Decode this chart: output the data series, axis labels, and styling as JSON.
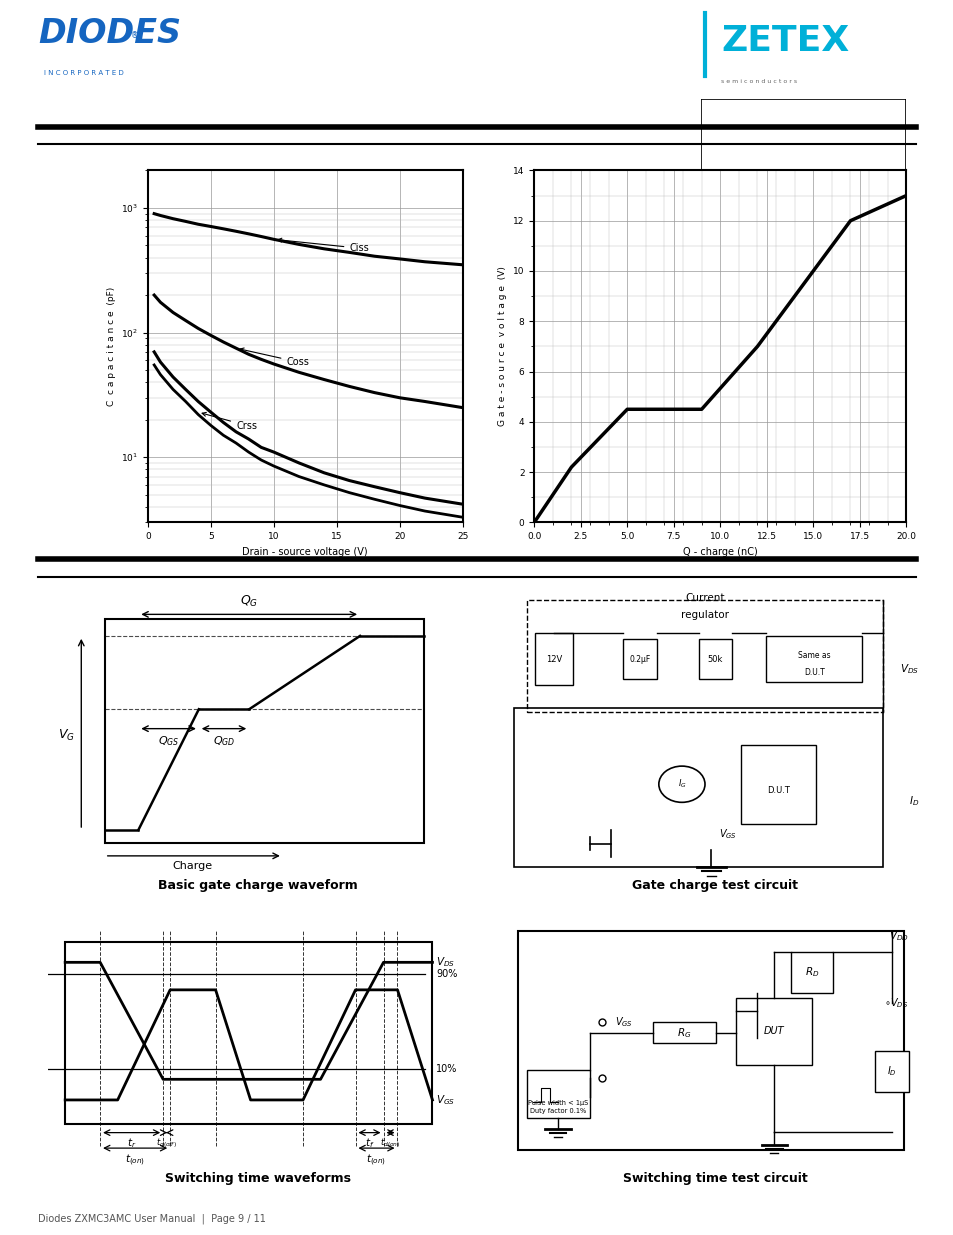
{
  "page_bg": "#ffffff",
  "diodes_logo_color": "#1565c0",
  "zetex_logo_color": "#00b0d8",
  "grid_color": "#aaaaaa",
  "curve_color": "#000000",
  "cap_curves": {
    "ciss": {
      "x": [
        0.5,
        1,
        2,
        3,
        4,
        5,
        6,
        7,
        8,
        9,
        10,
        12,
        14,
        16,
        18,
        20,
        22,
        25
      ],
      "y": [
        900,
        870,
        820,
        780,
        740,
        710,
        680,
        650,
        620,
        590,
        560,
        510,
        470,
        440,
        410,
        390,
        370,
        350
      ]
    },
    "coss": {
      "x": [
        0.5,
        1,
        2,
        3,
        4,
        5,
        6,
        7,
        8,
        9,
        10,
        12,
        14,
        16,
        18,
        20,
        22,
        25
      ],
      "y": [
        200,
        175,
        145,
        125,
        108,
        95,
        84,
        75,
        67,
        61,
        56,
        48,
        42,
        37,
        33,
        30,
        28,
        25
      ]
    },
    "crss1": {
      "x": [
        0.5,
        1,
        2,
        3,
        4,
        5,
        6,
        7,
        8,
        9,
        10,
        12,
        14,
        16,
        18,
        20,
        22,
        25
      ],
      "y": [
        70,
        58,
        44,
        35,
        28,
        23,
        19,
        16,
        14,
        12,
        11,
        9,
        7.5,
        6.5,
        5.8,
        5.2,
        4.7,
        4.2
      ]
    },
    "crss2": {
      "x": [
        0.5,
        1,
        2,
        3,
        4,
        5,
        6,
        7,
        8,
        9,
        10,
        12,
        14,
        16,
        18,
        20,
        22,
        25
      ],
      "y": [
        55,
        46,
        35,
        28,
        22,
        18,
        15,
        13,
        11,
        9.5,
        8.5,
        7,
        6,
        5.2,
        4.6,
        4.1,
        3.7,
        3.3
      ]
    }
  },
  "gate_charge_curve": {
    "x": [
      0,
      2,
      5,
      9,
      12,
      17,
      20
    ],
    "y": [
      0,
      2.2,
      4.5,
      4.5,
      7,
      12,
      13
    ]
  },
  "caption_waveform": "Basic gate charge waveform",
  "caption_gate_circuit": "Gate charge test circuit",
  "caption_switching_wave": "Switching time waveforms",
  "caption_switching_circuit": "Switching time test circuit"
}
